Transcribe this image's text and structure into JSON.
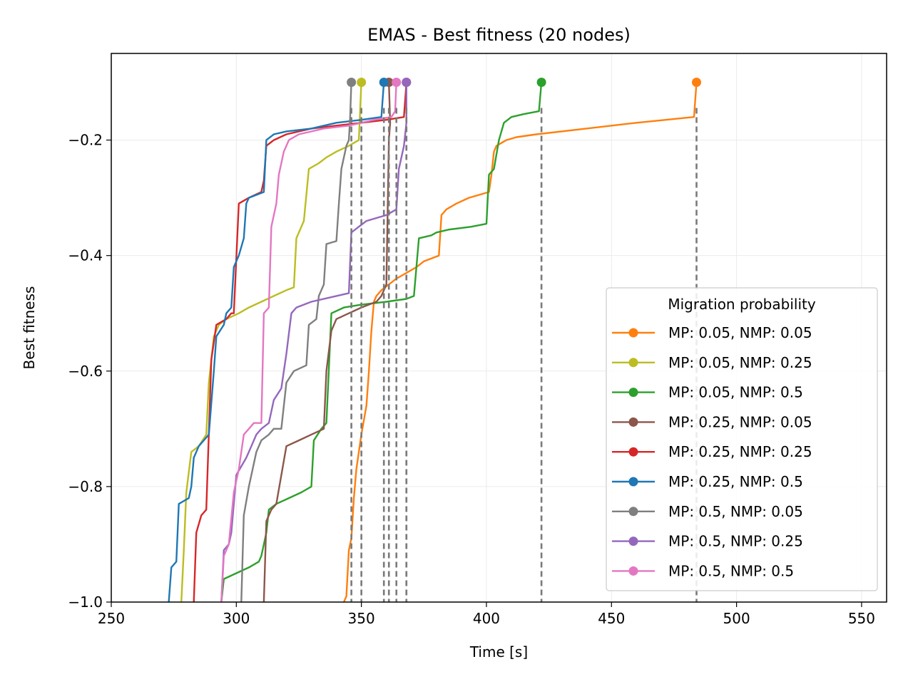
{
  "chart_data": {
    "type": "line",
    "title": "EMAS - Best fitness (20 nodes)",
    "xlabel": "Time [s]",
    "ylabel": "Best fitness",
    "xlim": [
      250,
      560
    ],
    "ylim": [
      -1.0,
      -0.05
    ],
    "xticks": [
      250,
      300,
      350,
      400,
      450,
      500,
      550
    ],
    "yticks": [
      -1.0,
      -0.8,
      -0.6,
      -0.4,
      -0.2
    ],
    "xtick_labels": [
      "250",
      "300",
      "350",
      "400",
      "450",
      "500",
      "550"
    ],
    "ytick_labels": [
      "−1.0",
      "−0.8",
      "−0.6",
      "−0.4",
      "−0.2"
    ],
    "grid": true,
    "final_value": -0.1,
    "legend": {
      "title": "Migration probability",
      "placement": "lower right"
    },
    "series": [
      {
        "name": "MP: 0.05, NMP: 0.05",
        "color": "#ff7f0e",
        "end_time": 484,
        "points": [
          [
            343,
            -1.0
          ],
          [
            344,
            -0.99
          ],
          [
            345,
            -0.91
          ],
          [
            346,
            -0.89
          ],
          [
            347,
            -0.82
          ],
          [
            348,
            -0.77
          ],
          [
            350,
            -0.71
          ],
          [
            352,
            -0.66
          ],
          [
            353,
            -0.6
          ],
          [
            354,
            -0.53
          ],
          [
            355,
            -0.48
          ],
          [
            356,
            -0.47
          ],
          [
            358,
            -0.46
          ],
          [
            361,
            -0.45
          ],
          [
            364,
            -0.44
          ],
          [
            368,
            -0.43
          ],
          [
            372,
            -0.42
          ],
          [
            375,
            -0.41
          ],
          [
            381,
            -0.4
          ],
          [
            382,
            -0.33
          ],
          [
            384,
            -0.32
          ],
          [
            388,
            -0.31
          ],
          [
            393,
            -0.3
          ],
          [
            401,
            -0.29
          ],
          [
            402,
            -0.26
          ],
          [
            403,
            -0.22
          ],
          [
            404,
            -0.21
          ],
          [
            408,
            -0.2
          ],
          [
            412,
            -0.195
          ],
          [
            420,
            -0.19
          ],
          [
            440,
            -0.18
          ],
          [
            460,
            -0.17
          ],
          [
            483,
            -0.16
          ]
        ]
      },
      {
        "name": "MP: 0.05, NMP: 0.25",
        "color": "#bcbd22",
        "end_time": 350,
        "points": [
          [
            278,
            -1.0
          ],
          [
            279,
            -0.91
          ],
          [
            280,
            -0.81
          ],
          [
            282,
            -0.74
          ],
          [
            285,
            -0.73
          ],
          [
            288,
            -0.71
          ],
          [
            289,
            -0.62
          ],
          [
            290,
            -0.58
          ],
          [
            291,
            -0.54
          ],
          [
            293,
            -0.52
          ],
          [
            296,
            -0.51
          ],
          [
            301,
            -0.5
          ],
          [
            305,
            -0.49
          ],
          [
            310,
            -0.48
          ],
          [
            315,
            -0.47
          ],
          [
            320,
            -0.46
          ],
          [
            323,
            -0.455
          ],
          [
            324,
            -0.37
          ],
          [
            327,
            -0.34
          ],
          [
            329,
            -0.25
          ],
          [
            333,
            -0.24
          ],
          [
            336,
            -0.23
          ],
          [
            340,
            -0.22
          ],
          [
            345,
            -0.21
          ],
          [
            349,
            -0.2
          ]
        ]
      },
      {
        "name": "MP: 0.05, NMP: 0.5",
        "color": "#2ca02c",
        "end_time": 422,
        "points": [
          [
            294,
            -1.0
          ],
          [
            295,
            -0.96
          ],
          [
            300,
            -0.95
          ],
          [
            305,
            -0.94
          ],
          [
            309,
            -0.93
          ],
          [
            310,
            -0.92
          ],
          [
            312,
            -0.88
          ],
          [
            313,
            -0.84
          ],
          [
            316,
            -0.83
          ],
          [
            321,
            -0.82
          ],
          [
            326,
            -0.81
          ],
          [
            330,
            -0.8
          ],
          [
            331,
            -0.72
          ],
          [
            334,
            -0.7
          ],
          [
            336,
            -0.69
          ],
          [
            338,
            -0.5
          ],
          [
            343,
            -0.49
          ],
          [
            350,
            -0.485
          ],
          [
            360,
            -0.48
          ],
          [
            368,
            -0.475
          ],
          [
            371,
            -0.47
          ],
          [
            373,
            -0.37
          ],
          [
            378,
            -0.365
          ],
          [
            380,
            -0.36
          ],
          [
            385,
            -0.355
          ],
          [
            394,
            -0.35
          ],
          [
            400,
            -0.345
          ],
          [
            401,
            -0.26
          ],
          [
            403,
            -0.25
          ],
          [
            405,
            -0.2
          ],
          [
            407,
            -0.17
          ],
          [
            410,
            -0.16
          ],
          [
            415,
            -0.155
          ],
          [
            421,
            -0.15
          ]
        ]
      },
      {
        "name": "MP: 0.25, NMP: 0.05",
        "color": "#8c564b",
        "end_time": 361,
        "points": [
          [
            311,
            -1.0
          ],
          [
            312,
            -0.86
          ],
          [
            314,
            -0.84
          ],
          [
            316,
            -0.83
          ],
          [
            320,
            -0.73
          ],
          [
            325,
            -0.72
          ],
          [
            330,
            -0.71
          ],
          [
            335,
            -0.7
          ],
          [
            336,
            -0.6
          ],
          [
            338,
            -0.53
          ],
          [
            340,
            -0.51
          ],
          [
            345,
            -0.5
          ],
          [
            350,
            -0.49
          ],
          [
            356,
            -0.48
          ],
          [
            358,
            -0.47
          ],
          [
            360,
            -0.45
          ],
          [
            361,
            -0.2
          ],
          [
            361.5,
            -0.17
          ]
        ]
      },
      {
        "name": "MP: 0.25, NMP: 0.25",
        "color": "#d62728",
        "end_time": 368,
        "points": [
          [
            283,
            -1.0
          ],
          [
            284,
            -0.88
          ],
          [
            286,
            -0.85
          ],
          [
            288,
            -0.84
          ],
          [
            290,
            -0.58
          ],
          [
            292,
            -0.52
          ],
          [
            296,
            -0.51
          ],
          [
            298,
            -0.5
          ],
          [
            299,
            -0.5
          ],
          [
            301,
            -0.31
          ],
          [
            305,
            -0.3
          ],
          [
            310,
            -0.29
          ],
          [
            311,
            -0.27
          ],
          [
            312,
            -0.21
          ],
          [
            315,
            -0.2
          ],
          [
            320,
            -0.19
          ],
          [
            325,
            -0.185
          ],
          [
            330,
            -0.18
          ],
          [
            340,
            -0.175
          ],
          [
            350,
            -0.17
          ],
          [
            360,
            -0.165
          ],
          [
            367,
            -0.16
          ]
        ]
      },
      {
        "name": "MP: 0.25, NMP: 0.5",
        "color": "#1f77b4",
        "end_time": 359,
        "points": [
          [
            273,
            -1.0
          ],
          [
            274,
            -0.94
          ],
          [
            276,
            -0.93
          ],
          [
            277,
            -0.83
          ],
          [
            281,
            -0.82
          ],
          [
            282,
            -0.8
          ],
          [
            283,
            -0.75
          ],
          [
            285,
            -0.73
          ],
          [
            287,
            -0.72
          ],
          [
            289,
            -0.71
          ],
          [
            291,
            -0.6
          ],
          [
            292,
            -0.54
          ],
          [
            295,
            -0.52
          ],
          [
            296,
            -0.5
          ],
          [
            298,
            -0.49
          ],
          [
            299,
            -0.42
          ],
          [
            301,
            -0.4
          ],
          [
            303,
            -0.37
          ],
          [
            304,
            -0.31
          ],
          [
            305,
            -0.3
          ],
          [
            311,
            -0.29
          ],
          [
            312,
            -0.2
          ],
          [
            315,
            -0.19
          ],
          [
            320,
            -0.185
          ],
          [
            330,
            -0.18
          ],
          [
            340,
            -0.17
          ],
          [
            350,
            -0.165
          ],
          [
            358,
            -0.16
          ]
        ]
      },
      {
        "name": "MP: 0.5, NMP: 0.05",
        "color": "#7f7f7f",
        "end_time": 346,
        "points": [
          [
            302,
            -1.0
          ],
          [
            303,
            -0.85
          ],
          [
            305,
            -0.8
          ],
          [
            306,
            -0.78
          ],
          [
            308,
            -0.74
          ],
          [
            310,
            -0.72
          ],
          [
            313,
            -0.71
          ],
          [
            315,
            -0.7
          ],
          [
            318,
            -0.7
          ],
          [
            320,
            -0.62
          ],
          [
            323,
            -0.6
          ],
          [
            328,
            -0.59
          ],
          [
            329,
            -0.52
          ],
          [
            332,
            -0.51
          ],
          [
            333,
            -0.47
          ],
          [
            335,
            -0.45
          ],
          [
            336,
            -0.38
          ],
          [
            340,
            -0.375
          ],
          [
            341,
            -0.31
          ],
          [
            342,
            -0.25
          ],
          [
            344,
            -0.21
          ],
          [
            345,
            -0.2
          ],
          [
            345.5,
            -0.16
          ]
        ]
      },
      {
        "name": "MP: 0.5, NMP: 0.25",
        "color": "#9467bd",
        "end_time": 368,
        "points": [
          [
            294,
            -1.0
          ],
          [
            295,
            -0.91
          ],
          [
            297,
            -0.9
          ],
          [
            298,
            -0.88
          ],
          [
            300,
            -0.78
          ],
          [
            304,
            -0.75
          ],
          [
            306,
            -0.73
          ],
          [
            308,
            -0.71
          ],
          [
            310,
            -0.7
          ],
          [
            313,
            -0.69
          ],
          [
            315,
            -0.65
          ],
          [
            318,
            -0.63
          ],
          [
            320,
            -0.57
          ],
          [
            322,
            -0.5
          ],
          [
            324,
            -0.49
          ],
          [
            330,
            -0.48
          ],
          [
            340,
            -0.47
          ],
          [
            345,
            -0.465
          ],
          [
            346,
            -0.36
          ],
          [
            349,
            -0.35
          ],
          [
            352,
            -0.34
          ],
          [
            360,
            -0.33
          ],
          [
            364,
            -0.32
          ],
          [
            365,
            -0.25
          ],
          [
            367,
            -0.21
          ],
          [
            368,
            -0.17
          ]
        ]
      },
      {
        "name": "MP: 0.5, NMP: 0.5",
        "color": "#e377c2",
        "end_time": 364,
        "points": [
          [
            294,
            -1.0
          ],
          [
            295,
            -0.92
          ],
          [
            297,
            -0.9
          ],
          [
            299,
            -0.81
          ],
          [
            301,
            -0.77
          ],
          [
            303,
            -0.71
          ],
          [
            305,
            -0.7
          ],
          [
            307,
            -0.69
          ],
          [
            310,
            -0.69
          ],
          [
            311,
            -0.5
          ],
          [
            313,
            -0.49
          ],
          [
            314,
            -0.35
          ],
          [
            316,
            -0.31
          ],
          [
            317,
            -0.26
          ],
          [
            319,
            -0.22
          ],
          [
            321,
            -0.2
          ],
          [
            325,
            -0.19
          ],
          [
            335,
            -0.18
          ],
          [
            345,
            -0.175
          ],
          [
            355,
            -0.165
          ],
          [
            362,
            -0.16
          ],
          [
            363.5,
            -0.15
          ]
        ]
      }
    ]
  }
}
